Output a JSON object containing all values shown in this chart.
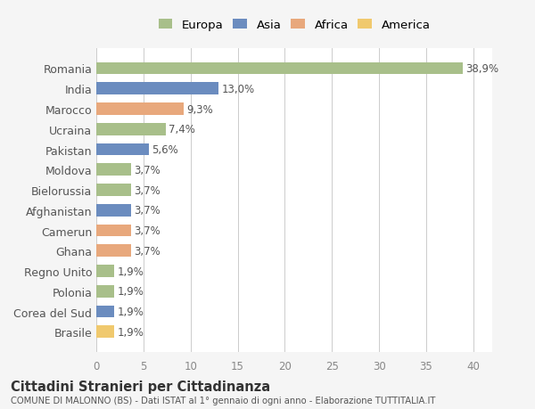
{
  "categories": [
    "Brasile",
    "Corea del Sud",
    "Polonia",
    "Regno Unito",
    "Ghana",
    "Camerun",
    "Afghanistan",
    "Bielorussia",
    "Moldova",
    "Pakistan",
    "Ucraina",
    "Marocco",
    "India",
    "Romania"
  ],
  "values": [
    1.9,
    1.9,
    1.9,
    1.9,
    3.7,
    3.7,
    3.7,
    3.7,
    3.7,
    5.6,
    7.4,
    9.3,
    13.0,
    38.9
  ],
  "colors": [
    "#f0c96e",
    "#6b8cbf",
    "#a8bf8a",
    "#a8bf8a",
    "#e8a87c",
    "#e8a87c",
    "#6b8cbf",
    "#a8bf8a",
    "#a8bf8a",
    "#6b8cbf",
    "#a8bf8a",
    "#e8a87c",
    "#6b8cbf",
    "#a8bf8a"
  ],
  "labels": [
    "1,9%",
    "1,9%",
    "1,9%",
    "1,9%",
    "3,7%",
    "3,7%",
    "3,7%",
    "3,7%",
    "3,7%",
    "5,6%",
    "7,4%",
    "9,3%",
    "13,0%",
    "38,9%"
  ],
  "legend_labels": [
    "Europa",
    "Asia",
    "Africa",
    "America"
  ],
  "legend_colors": [
    "#a8bf8a",
    "#6b8cbf",
    "#e8a87c",
    "#f0c96e"
  ],
  "title": "Cittadini Stranieri per Cittadinanza",
  "subtitle": "COMUNE DI MALONNO (BS) - Dati ISTAT al 1° gennaio di ogni anno - Elaborazione TUTTITALIA.IT",
  "xlim": [
    0,
    42
  ],
  "xticks": [
    0,
    5,
    10,
    15,
    20,
    25,
    30,
    35,
    40
  ],
  "bg_color": "#f5f5f5",
  "bar_bg_color": "#ffffff",
  "grid_color": "#cccccc"
}
